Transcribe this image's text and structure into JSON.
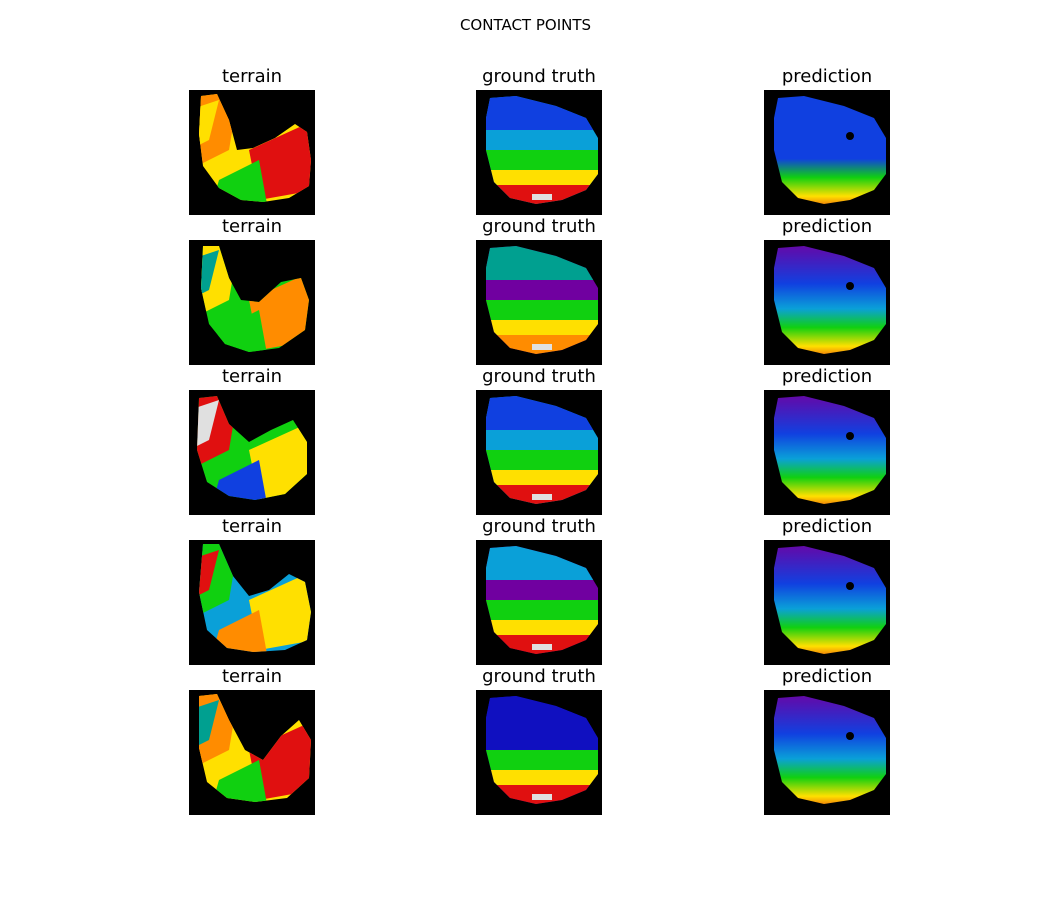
{
  "figure": {
    "title": "CONTACT POINTS"
  },
  "rows": [
    {
      "panels": [
        {
          "title": "terrain",
          "kind": "terrain",
          "variant": 0
        },
        {
          "title": "ground truth",
          "kind": "ground-truth",
          "variant": 0
        },
        {
          "title": "prediction",
          "kind": "prediction",
          "variant": 0
        }
      ]
    },
    {
      "panels": [
        {
          "title": "terrain",
          "kind": "terrain",
          "variant": 1
        },
        {
          "title": "ground truth",
          "kind": "ground-truth",
          "variant": 1
        },
        {
          "title": "prediction",
          "kind": "prediction",
          "variant": 1
        }
      ]
    },
    {
      "panels": [
        {
          "title": "terrain",
          "kind": "terrain",
          "variant": 2
        },
        {
          "title": "ground truth",
          "kind": "ground-truth",
          "variant": 2
        },
        {
          "title": "prediction",
          "kind": "prediction",
          "variant": 2
        }
      ]
    },
    {
      "panels": [
        {
          "title": "terrain",
          "kind": "terrain",
          "variant": 3
        },
        {
          "title": "ground truth",
          "kind": "ground-truth",
          "variant": 3
        },
        {
          "title": "prediction",
          "kind": "prediction",
          "variant": 3
        }
      ]
    },
    {
      "panels": [
        {
          "title": "terrain",
          "kind": "terrain",
          "variant": 4
        },
        {
          "title": "ground truth",
          "kind": "ground-truth",
          "variant": 4
        },
        {
          "title": "prediction",
          "kind": "prediction",
          "variant": 4
        }
      ]
    }
  ],
  "colors": {
    "background": "#000000",
    "red": "#e01010",
    "orange": "#ff8c00",
    "yellow": "#ffe000",
    "green": "#10d010",
    "teal": "#00a090",
    "cyan": "#0aa0d8",
    "blue": "#1040e0",
    "navy": "#1010c0",
    "purple": "#7000a0",
    "white": "#e0e0e0"
  }
}
